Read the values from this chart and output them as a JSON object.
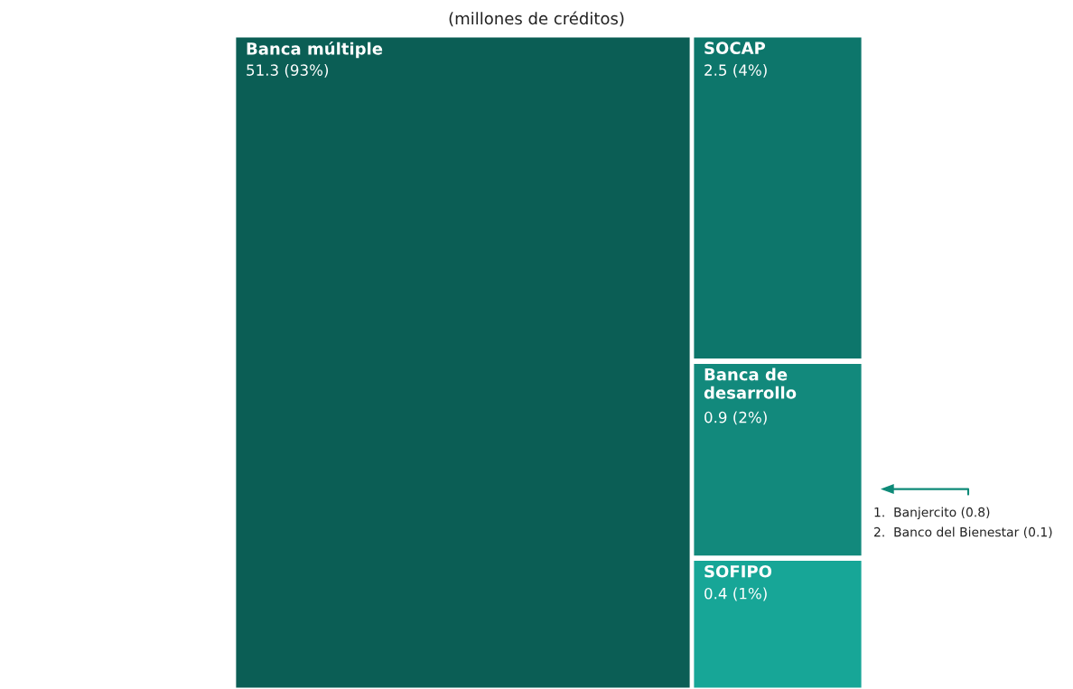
{
  "chart_data": {
    "type": "other",
    "subtitle": "(millones de créditos)",
    "categories": [
      "Banca múltiple",
      "SOCAP",
      "Banca de desarrollo",
      "SOFIPO"
    ],
    "values": [
      51.3,
      2.5,
      0.9,
      0.4
    ],
    "value_labels": [
      "51.3 (93%)",
      "2.5 (4%)",
      "0.9 (2%)",
      "0.4 (1%)"
    ],
    "colors": [
      "#0b5e55",
      "#0d766b",
      "#12897c",
      "#17a697"
    ],
    "annotations": [
      "1.  Banjercito (0.8)",
      "2.  Banco del Bienestar (0.1)"
    ]
  }
}
